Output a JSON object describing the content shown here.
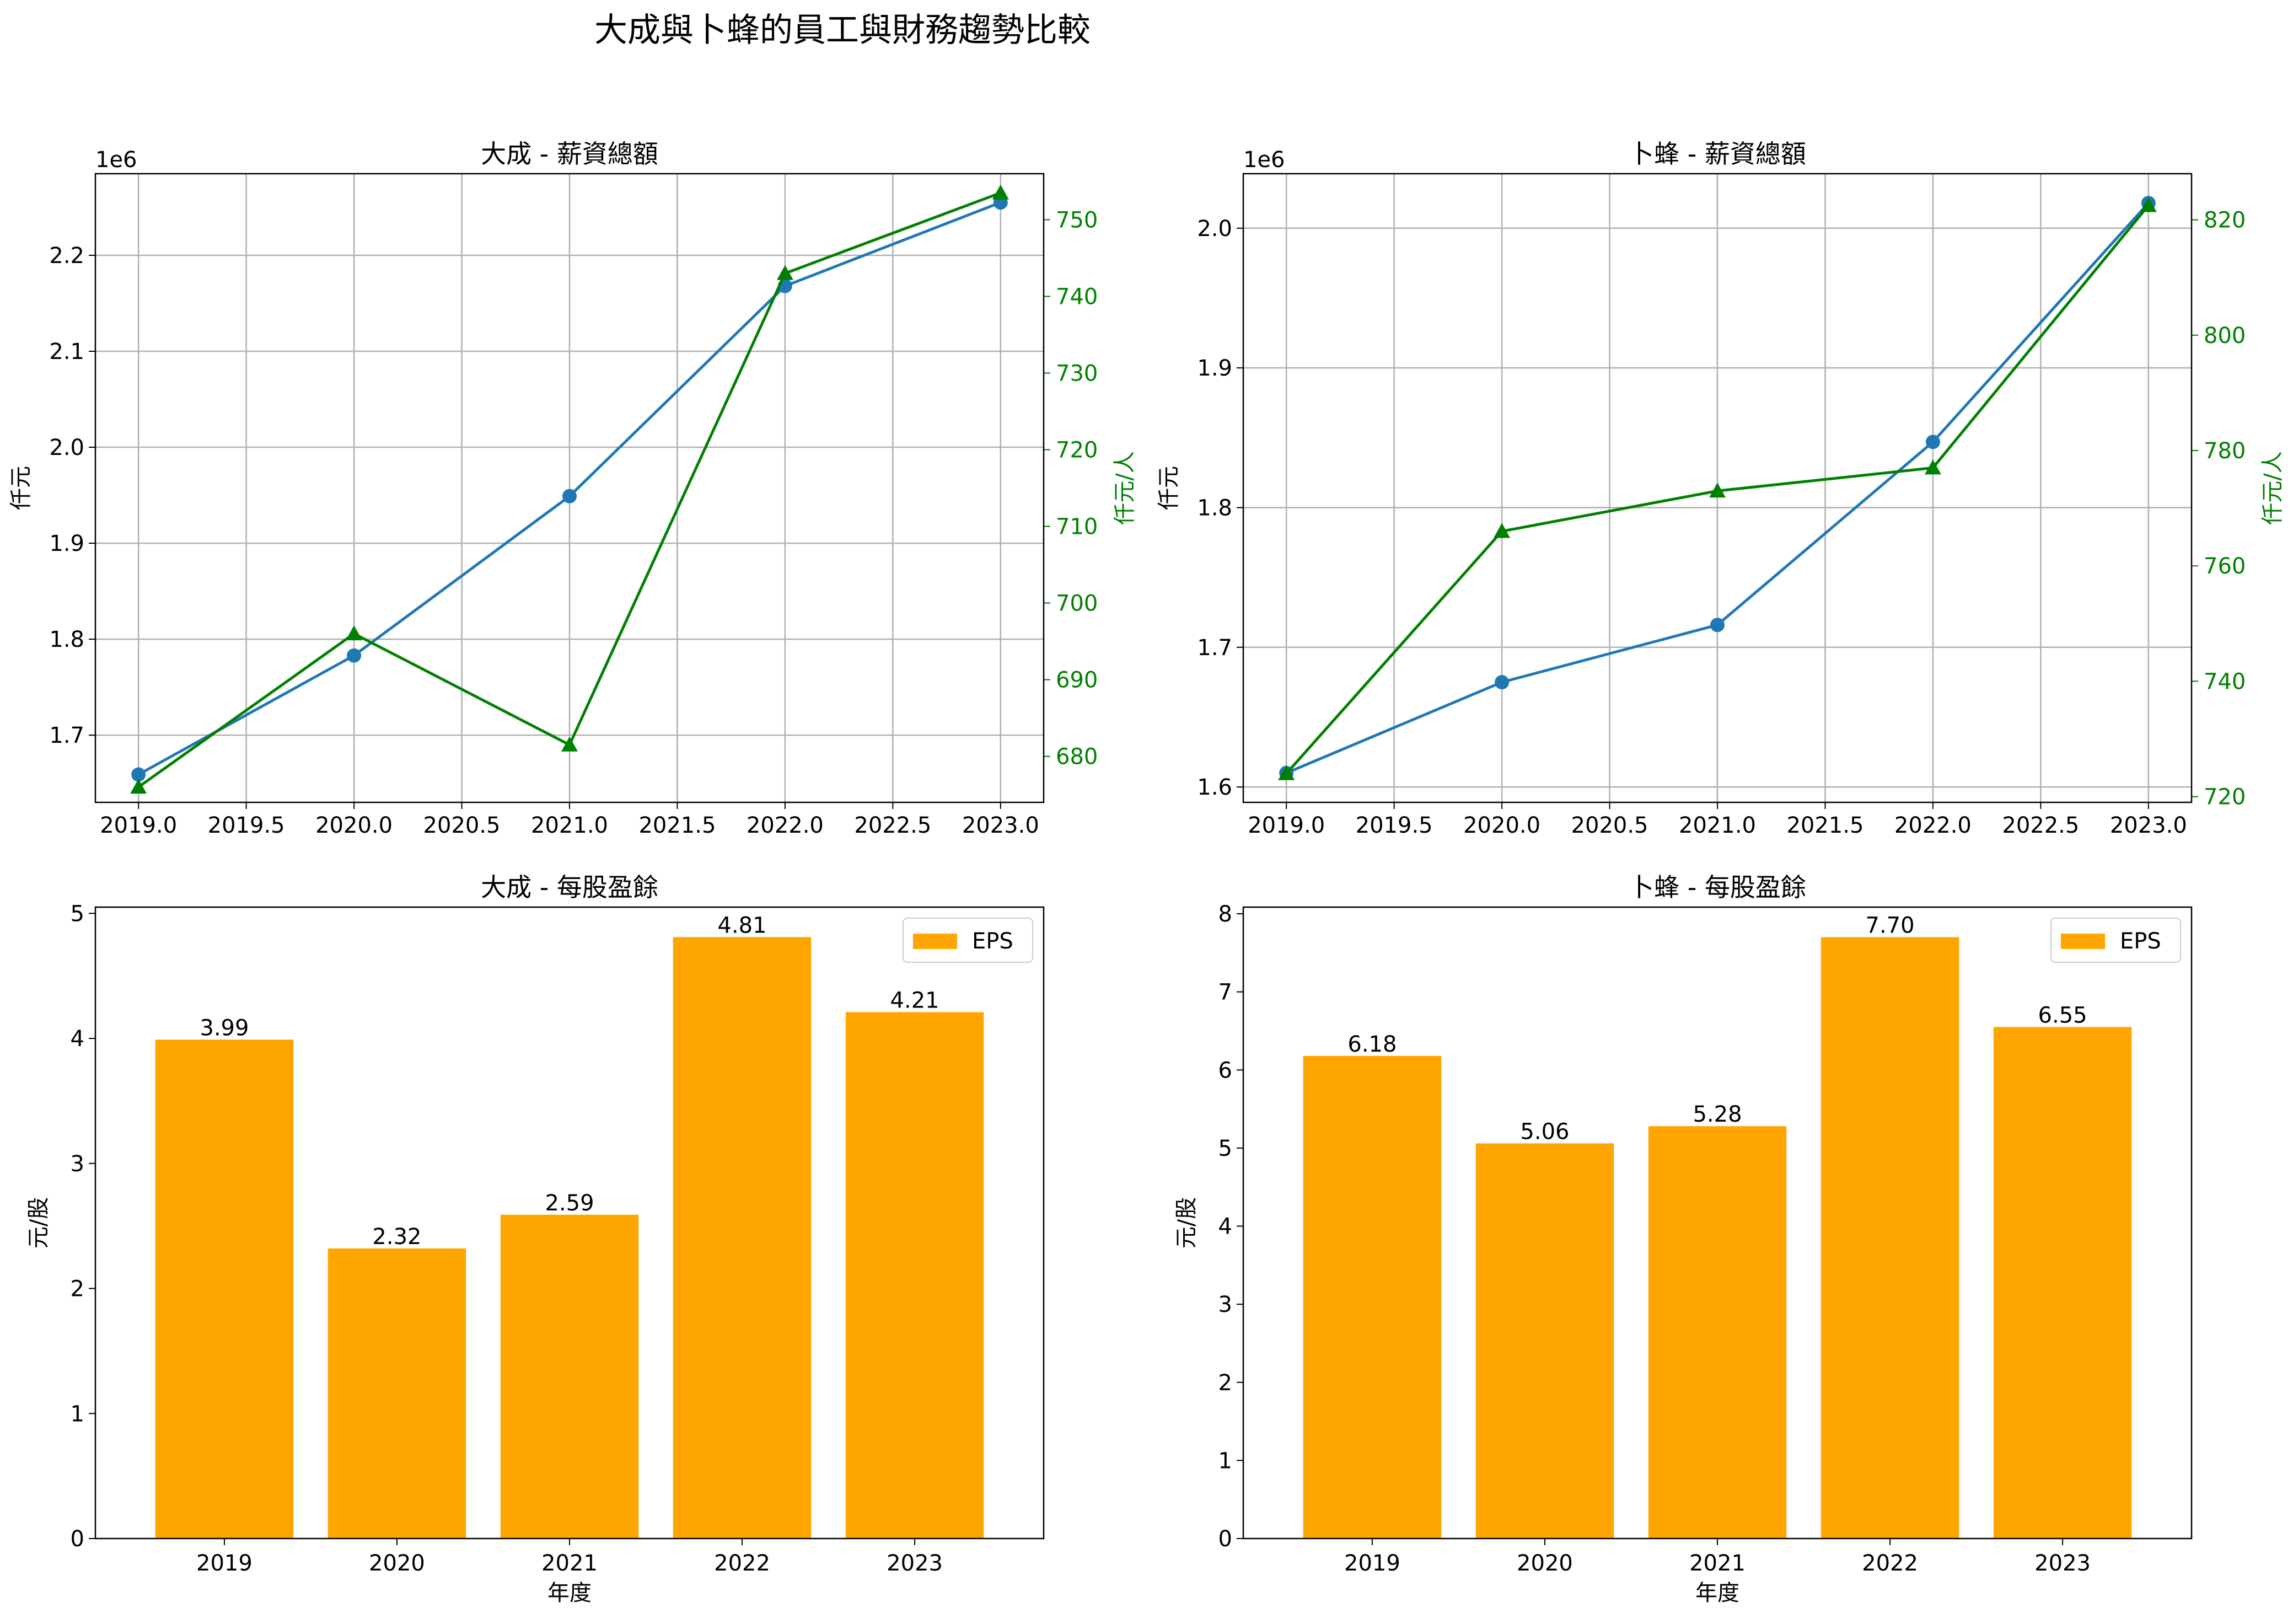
{
  "figure": {
    "title": "大成與卜蜂的員工與財務趨勢比較"
  },
  "colors": {
    "salary": "#1f77b4",
    "per_capita": "#008000",
    "eps": "#ffa500",
    "grid": "#b0b0b0"
  },
  "chart_data": [
    {
      "id": "ds_salary",
      "type": "line",
      "title": "大成 - 薪資總額",
      "xlabel": "",
      "ylabel": "仟元",
      "ylabel_right": "仟元/人",
      "offset_label": "1e6",
      "x": [
        2019,
        2020,
        2021,
        2022,
        2023
      ],
      "xlim": [
        2018.8,
        2023.2
      ],
      "xticks": [
        "2019.0",
        "2019.5",
        "2020.0",
        "2020.5",
        "2021.0",
        "2021.5",
        "2022.0",
        "2022.5",
        "2023.0"
      ],
      "ylim": [
        1.63,
        2.285
      ],
      "yticks": [
        "1.7",
        "1.8",
        "1.9",
        "2.0",
        "2.1",
        "2.2"
      ],
      "y2lim": [
        674,
        756
      ],
      "y2ticks": [
        "680",
        "690",
        "700",
        "710",
        "720",
        "730",
        "740",
        "750"
      ],
      "grid": true,
      "series": [
        {
          "axis": "left",
          "marker": "circle",
          "values": [
            1.659,
            1.783,
            1.949,
            2.168,
            2.255
          ]
        },
        {
          "axis": "right",
          "marker": "triangle",
          "values": [
            676,
            696,
            681.5,
            743,
            753.5
          ]
        }
      ]
    },
    {
      "id": "bf_salary",
      "type": "line",
      "title": "卜蜂 - 薪資總額",
      "xlabel": "",
      "ylabel": "仟元",
      "ylabel_right": "仟元/人",
      "offset_label": "1e6",
      "x": [
        2019,
        2020,
        2021,
        2022,
        2023
      ],
      "xlim": [
        2018.8,
        2023.2
      ],
      "xticks": [
        "2019.0",
        "2019.5",
        "2020.0",
        "2020.5",
        "2021.0",
        "2021.5",
        "2022.0",
        "2022.5",
        "2023.0"
      ],
      "ylim": [
        1.589,
        2.039
      ],
      "yticks": [
        "1.6",
        "1.7",
        "1.8",
        "1.9",
        "2.0"
      ],
      "y2lim": [
        719,
        828
      ],
      "y2ticks": [
        "720",
        "740",
        "760",
        "780",
        "800",
        "820"
      ],
      "grid": true,
      "series": [
        {
          "axis": "left",
          "marker": "circle",
          "values": [
            1.61,
            1.675,
            1.716,
            1.847,
            2.018
          ]
        },
        {
          "axis": "right",
          "marker": "triangle",
          "values": [
            724,
            766,
            773,
            777,
            822.5
          ]
        }
      ]
    },
    {
      "id": "ds_eps",
      "type": "bar",
      "title": "大成 - 每股盈餘",
      "xlabel": "年度",
      "ylabel": "元/股",
      "categories": [
        "2019",
        "2020",
        "2021",
        "2022",
        "2023"
      ],
      "values": [
        3.99,
        2.32,
        2.59,
        4.81,
        4.21
      ],
      "data_labels": [
        "3.99",
        "2.32",
        "2.59",
        "4.81",
        "4.21"
      ],
      "ylim": [
        0,
        5.05
      ],
      "yticks": [
        "0",
        "1",
        "2",
        "3",
        "4",
        "5"
      ],
      "legend": {
        "label": "EPS",
        "position": "upper right"
      },
      "grid": false
    },
    {
      "id": "bf_eps",
      "type": "bar",
      "title": "卜蜂 - 每股盈餘",
      "xlabel": "年度",
      "ylabel": "元/股",
      "categories": [
        "2019",
        "2020",
        "2021",
        "2022",
        "2023"
      ],
      "values": [
        6.18,
        5.06,
        5.28,
        7.7,
        6.55
      ],
      "data_labels": [
        "6.18",
        "5.06",
        "5.28",
        "7.70",
        "6.55"
      ],
      "ylim": [
        0,
        8.085
      ],
      "yticks": [
        "0",
        "1",
        "2",
        "3",
        "4",
        "5",
        "6",
        "7",
        "8"
      ],
      "legend": {
        "label": "EPS",
        "position": "upper right"
      },
      "grid": false
    }
  ]
}
